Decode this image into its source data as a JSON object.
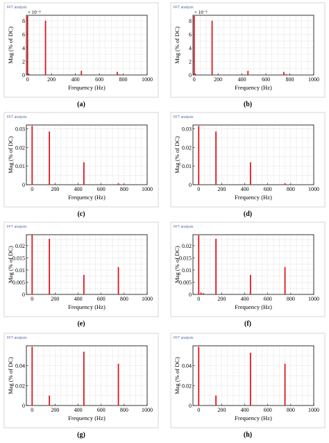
{
  "window_title": "FFT analysis",
  "chart_data": [
    {
      "panel": "(a)",
      "type": "bar",
      "ylabel": "Mag (% of DC)",
      "xlabel": "Frequency (Hz)",
      "xlim": [
        -10,
        1000
      ],
      "xticks": [
        0,
        200,
        400,
        600,
        800,
        1000
      ],
      "ylim": [
        0,
        0.0088
      ],
      "yticks": [
        0,
        0.002,
        0.004,
        0.006,
        0.008
      ],
      "ytick_labels": [
        "0",
        "2",
        "4",
        "6",
        "8"
      ],
      "exponent_label": "× 10⁻³",
      "grid": true,
      "x": [
        0,
        10,
        150,
        450,
        750,
        770
      ],
      "values": [
        0.0087,
        0.0002,
        0.008,
        0.0006,
        0.00045,
        0.0001
      ]
    },
    {
      "panel": "(b)",
      "type": "bar",
      "ylabel": "Mag (% of DC)",
      "xlabel": "Frequency (Hz)",
      "xlim": [
        -10,
        1000
      ],
      "xticks": [
        0,
        200,
        400,
        600,
        800,
        1000
      ],
      "ylim": [
        0,
        0.0088
      ],
      "yticks": [
        0,
        0.002,
        0.004,
        0.006,
        0.008
      ],
      "ytick_labels": [
        "0",
        "2",
        "4",
        "6",
        "8"
      ],
      "exponent_label": "× 10⁻³",
      "grid": true,
      "x": [
        0,
        10,
        150,
        450,
        750,
        770
      ],
      "values": [
        0.0087,
        0.0002,
        0.008,
        0.0006,
        0.00045,
        0.0001
      ]
    },
    {
      "panel": "(c)",
      "type": "bar",
      "ylabel": "Mag (% of DC)",
      "xlabel": "Frequency (Hz)",
      "xlim": [
        -50,
        1000
      ],
      "xticks": [
        0,
        200,
        400,
        600,
        800,
        1000
      ],
      "ylim": [
        0,
        0.032
      ],
      "yticks": [
        0,
        0.01,
        0.02,
        0.03
      ],
      "ytick_labels": [
        "0",
        "0.01",
        "0.02",
        "0.03"
      ],
      "grid": true,
      "x": [
        0,
        150,
        450,
        750
      ],
      "values": [
        0.0315,
        0.0285,
        0.012,
        0.0008
      ]
    },
    {
      "panel": "(d)",
      "type": "bar",
      "ylabel": "Mag (% of DC)",
      "xlabel": "Frequency (Hz)",
      "xlim": [
        -50,
        1000
      ],
      "xticks": [
        0,
        200,
        400,
        600,
        800,
        1000
      ],
      "ylim": [
        0,
        0.032
      ],
      "yticks": [
        0,
        0.01,
        0.02,
        0.03
      ],
      "ytick_labels": [
        "0",
        "0.01",
        "0.02",
        "0.03"
      ],
      "grid": true,
      "x": [
        0,
        150,
        450,
        750
      ],
      "values": [
        0.0315,
        0.0285,
        0.012,
        0.0008
      ]
    },
    {
      "panel": "(e)",
      "type": "bar",
      "ylabel": "Mag (% of DC)",
      "xlabel": "Frequency (Hz)",
      "xlim": [
        -50,
        1000
      ],
      "xticks": [
        0,
        200,
        400,
        600,
        800,
        1000
      ],
      "ylim": [
        0,
        0.0245
      ],
      "yticks": [
        0,
        0.005,
        0.01,
        0.015,
        0.02
      ],
      "ytick_labels": [
        "0",
        "0.005",
        "0.01",
        "0.015",
        "0.02"
      ],
      "grid": true,
      "x": [
        0,
        150,
        450,
        750
      ],
      "values": [
        0.0245,
        0.0228,
        0.008,
        0.0112
      ]
    },
    {
      "panel": "(f)",
      "type": "bar",
      "ylabel": "Mag (% of DC)",
      "xlabel": "Frequency (Hz)",
      "xlim": [
        -50,
        1000
      ],
      "xticks": [
        0,
        200,
        400,
        600,
        800,
        1000
      ],
      "ylim": [
        0,
        0.0245
      ],
      "yticks": [
        0,
        0.005,
        0.01,
        0.015,
        0.02
      ],
      "ytick_labels": [
        "0",
        "0.005",
        "0.01",
        "0.015",
        "0.02"
      ],
      "grid": true,
      "x": [
        0,
        20,
        40,
        150,
        450,
        750
      ],
      "values": [
        0.0242,
        0.0008,
        0.0005,
        0.0228,
        0.008,
        0.0112
      ]
    },
    {
      "panel": "(g)",
      "type": "bar",
      "ylabel": "Mag (% of DC)",
      "xlabel": "Frequency (Hz)",
      "xlim": [
        -50,
        1000
      ],
      "xticks": [
        0,
        200,
        400,
        600,
        800,
        1000
      ],
      "ylim": [
        0,
        0.06
      ],
      "yticks": [
        0,
        0.02,
        0.04
      ],
      "ytick_labels": [
        "0",
        "0.02",
        "0.04"
      ],
      "grid": true,
      "x": [
        0,
        150,
        450,
        750
      ],
      "values": [
        0.059,
        0.01,
        0.054,
        0.042
      ]
    },
    {
      "panel": "(h)",
      "type": "bar",
      "ylabel": "Mag (% of DC)",
      "xlabel": "Frequency (Hz)",
      "xlim": [
        -50,
        1000
      ],
      "xticks": [
        0,
        200,
        400,
        600,
        800,
        1000
      ],
      "ylim": [
        0,
        0.06
      ],
      "yticks": [
        0,
        0.02,
        0.04
      ],
      "ytick_labels": [
        "0",
        "0.02",
        "0.04"
      ],
      "grid": true,
      "x": [
        0,
        150,
        450,
        750
      ],
      "values": [
        0.059,
        0.01,
        0.053,
        0.042
      ]
    }
  ],
  "colors": {
    "bar": "#e0151b",
    "grid": "#c8c8c8",
    "axis": "#000000",
    "frame": "#d4d4d4"
  }
}
